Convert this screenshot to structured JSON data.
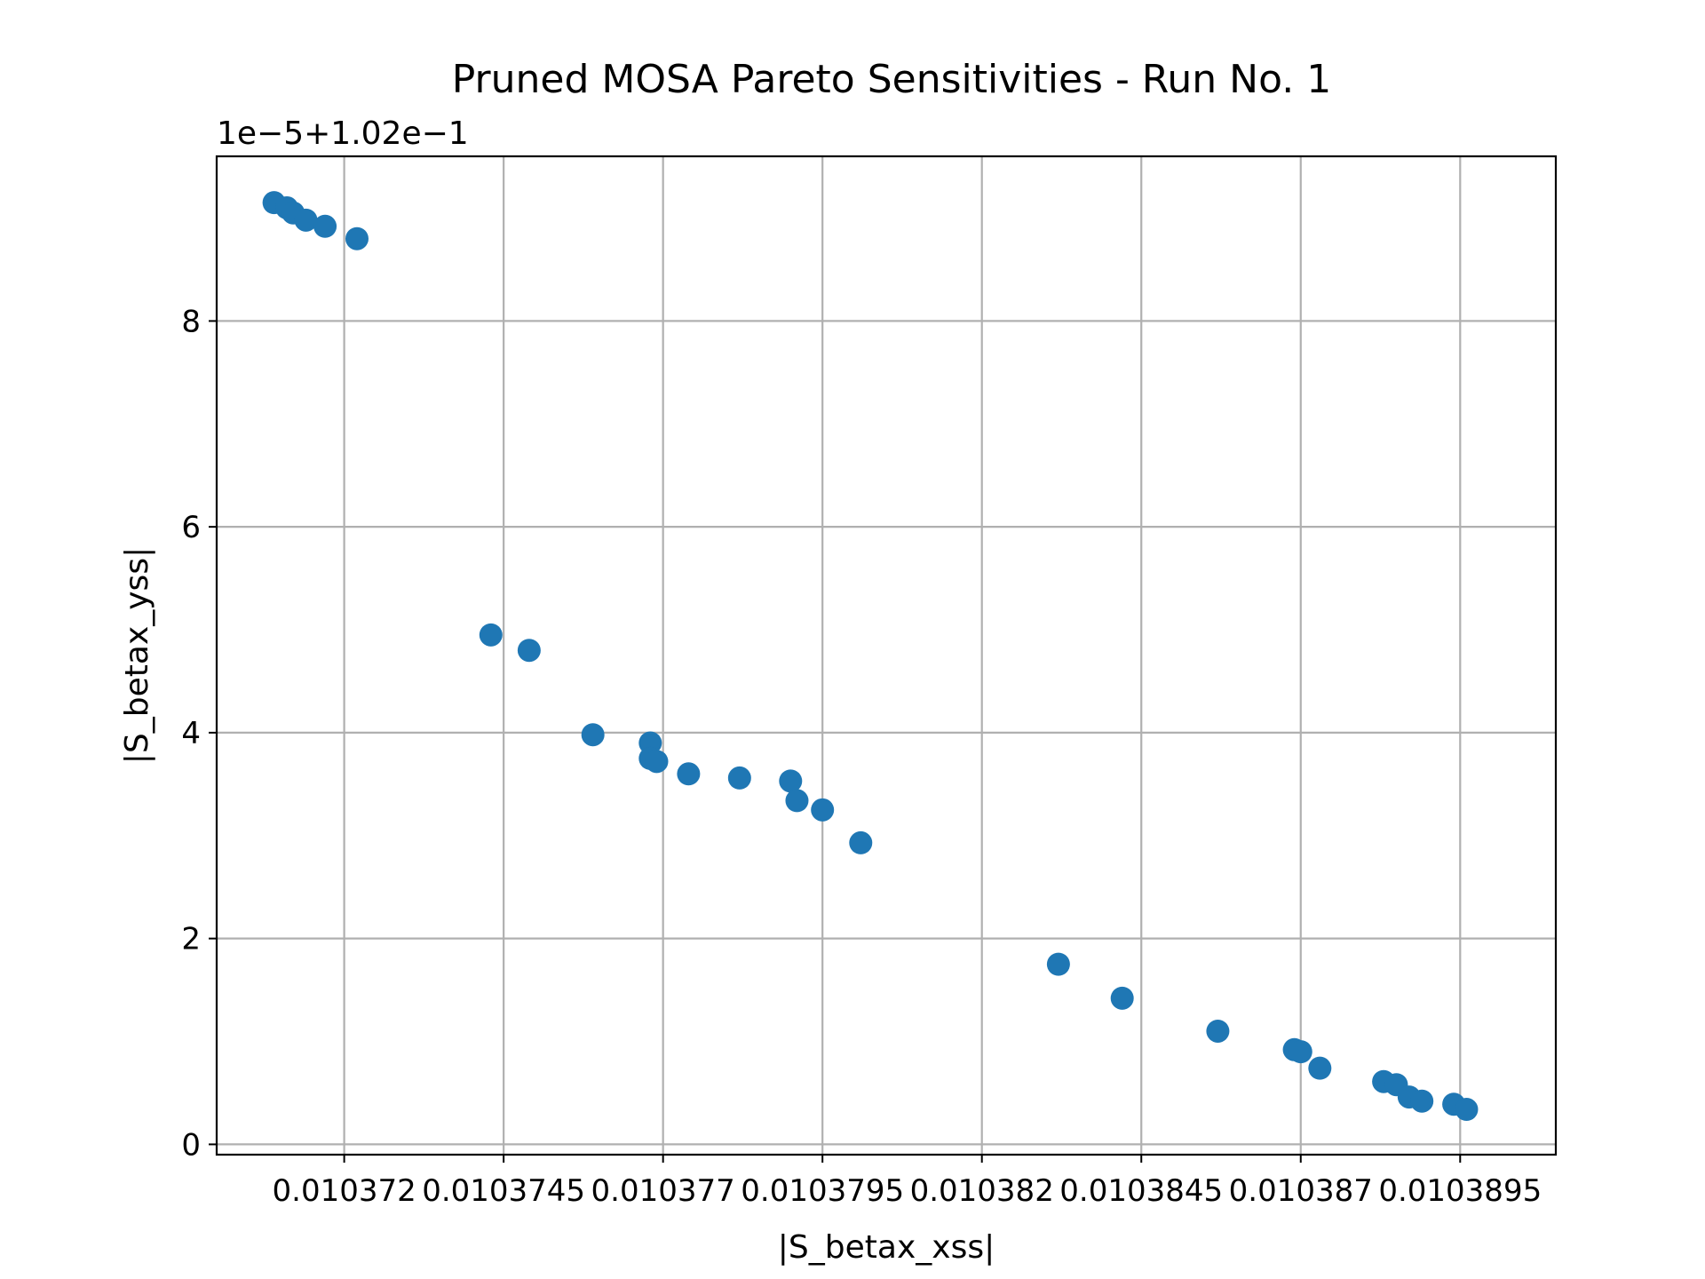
{
  "chart_data": {
    "type": "scatter",
    "title": "Pruned MOSA Pareto Sensitivities - Run No. 1",
    "xlabel": "|S_betax_xss|",
    "ylabel": "|S_betax_yss|",
    "y_offset_text": "1e−5+1.02e−1",
    "xlim": [
      0.01037,
      0.010391
    ],
    "ylim": [
      -0.1,
      9.6
    ],
    "x_ticks": [
      0.010372,
      0.0103745,
      0.010377,
      0.0103795,
      0.010382,
      0.0103845,
      0.010387,
      0.0103895
    ],
    "x_tick_labels": [
      "0.010372",
      "0.0103745",
      "0.010377",
      "0.0103795",
      "0.010382",
      "0.0103845",
      "0.010387",
      "0.0103895"
    ],
    "y_ticks": [
      0,
      2,
      4,
      6,
      8
    ],
    "y_tick_labels": [
      "0",
      "2",
      "4",
      "6",
      "8"
    ],
    "grid": true,
    "marker_color": "#1f77b4",
    "points": [
      [
        0.0103709,
        9.15
      ],
      [
        0.0103711,
        9.1
      ],
      [
        0.0103712,
        9.05
      ],
      [
        0.0103714,
        8.98
      ],
      [
        0.0103717,
        8.92
      ],
      [
        0.0103722,
        8.8
      ],
      [
        0.0103743,
        4.95
      ],
      [
        0.0103749,
        4.8
      ],
      [
        0.0103759,
        3.98
      ],
      [
        0.0103768,
        3.9
      ],
      [
        0.0103768,
        3.75
      ],
      [
        0.0103769,
        3.72
      ],
      [
        0.0103774,
        3.6
      ],
      [
        0.0103782,
        3.56
      ],
      [
        0.010379,
        3.53
      ],
      [
        0.0103791,
        3.34
      ],
      [
        0.0103795,
        3.25
      ],
      [
        0.0103801,
        2.93
      ],
      [
        0.0103832,
        1.75
      ],
      [
        0.0103842,
        1.42
      ],
      [
        0.0103857,
        1.1
      ],
      [
        0.0103869,
        0.92
      ],
      [
        0.010387,
        0.9
      ],
      [
        0.0103873,
        0.74
      ],
      [
        0.0103883,
        0.61
      ],
      [
        0.0103885,
        0.58
      ],
      [
        0.0103887,
        0.46
      ],
      [
        0.0103889,
        0.42
      ],
      [
        0.0103894,
        0.39
      ],
      [
        0.0103896,
        0.34
      ]
    ]
  }
}
